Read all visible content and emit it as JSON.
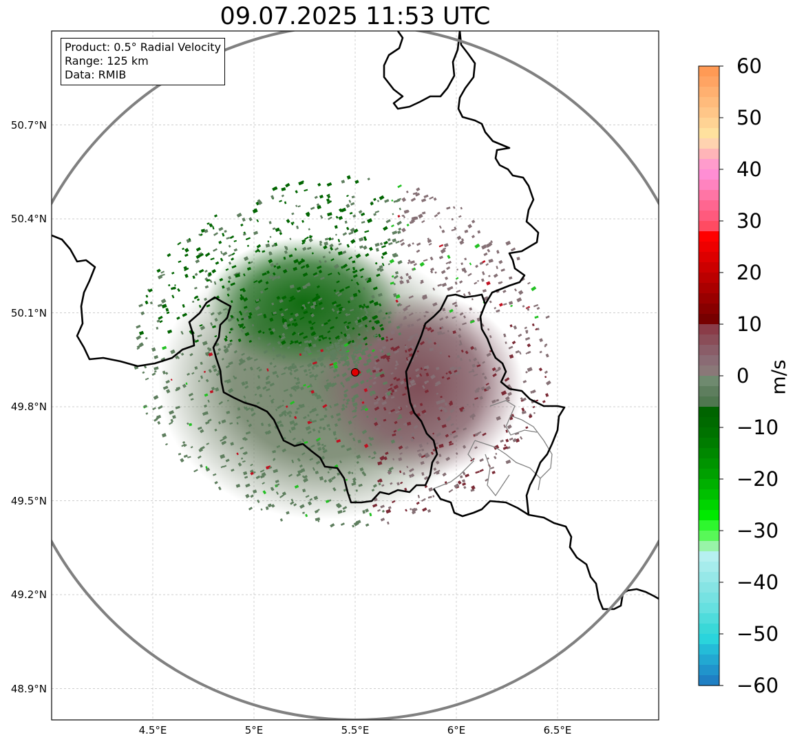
{
  "title": "09.07.2025 11:53 UTC",
  "info": {
    "product": "Product: 0.5° Radial Velocity",
    "range": "Range: 125 km",
    "source": "Data: RMIB"
  },
  "map": {
    "lon_range": [
      4.0,
      7.0
    ],
    "lat_range": [
      48.8,
      51.0
    ],
    "radar_site": {
      "lon": 5.5,
      "lat": 49.91
    },
    "range_ring_km": 125,
    "x_ticks": [
      "4.5°E",
      "5°E",
      "5.5°E",
      "6°E",
      "6.5°E"
    ],
    "x_tick_values": [
      4.5,
      5.0,
      5.5,
      6.0,
      6.5
    ],
    "y_ticks": [
      "50.7°N",
      "50.4°N",
      "50.1°N",
      "49.8°N",
      "49.5°N",
      "49.2°N",
      "48.9°N"
    ],
    "y_tick_values": [
      50.7,
      50.4,
      50.1,
      49.8,
      49.5,
      49.2,
      48.9
    ],
    "grid": true,
    "colors": {
      "ring": "#808080",
      "border": "#000000",
      "admin_border": "#808080",
      "radar_marker": "#e00000",
      "inbound_strong": "#006400",
      "inbound_weak": "#5e7e5e",
      "outbound_weak": "#857075",
      "outbound_strong": "#7a2a35"
    }
  },
  "colorbar": {
    "label": "m/s",
    "min": -60,
    "max": 60,
    "ticks": [
      "60",
      "50",
      "40",
      "30",
      "20",
      "10",
      "0",
      "−10",
      "−20",
      "−30",
      "−40",
      "−50",
      "−60"
    ],
    "tick_values": [
      60,
      50,
      40,
      30,
      20,
      10,
      0,
      -10,
      -20,
      -30,
      -40,
      -50,
      -60
    ],
    "bands": [
      {
        "from": 58,
        "to": 60,
        "color": "#ff9a55"
      },
      {
        "from": 56,
        "to": 58,
        "color": "#ffa463"
      },
      {
        "from": 54,
        "to": 56,
        "color": "#ffb070"
      },
      {
        "from": 52,
        "to": 54,
        "color": "#ffbb7c"
      },
      {
        "from": 50,
        "to": 52,
        "color": "#ffc688"
      },
      {
        "from": 48,
        "to": 50,
        "color": "#ffd394"
      },
      {
        "from": 46,
        "to": 48,
        "color": "#ffe19e"
      },
      {
        "from": 44,
        "to": 46,
        "color": "#ffd3b0"
      },
      {
        "from": 42,
        "to": 44,
        "color": "#ffb5b8"
      },
      {
        "from": 40,
        "to": 42,
        "color": "#ff9ccc"
      },
      {
        "from": 38,
        "to": 40,
        "color": "#ff8ed4"
      },
      {
        "from": 36,
        "to": 38,
        "color": "#ff83bf"
      },
      {
        "from": 34,
        "to": 36,
        "color": "#ff75a5"
      },
      {
        "from": 32,
        "to": 34,
        "color": "#ff6690"
      },
      {
        "from": 30,
        "to": 32,
        "color": "#ff5a7d"
      },
      {
        "from": 28,
        "to": 30,
        "color": "#ff4b62"
      },
      {
        "from": 26,
        "to": 28,
        "color": "#ff0000"
      },
      {
        "from": 24,
        "to": 26,
        "color": "#ee0000"
      },
      {
        "from": 22,
        "to": 24,
        "color": "#dd0000"
      },
      {
        "from": 20,
        "to": 22,
        "color": "#cc0000"
      },
      {
        "from": 18,
        "to": 20,
        "color": "#bb0000"
      },
      {
        "from": 16,
        "to": 18,
        "color": "#aa0000"
      },
      {
        "from": 14,
        "to": 16,
        "color": "#990000"
      },
      {
        "from": 12,
        "to": 14,
        "color": "#880000"
      },
      {
        "from": 10,
        "to": 12,
        "color": "#770000"
      },
      {
        "from": 8,
        "to": 10,
        "color": "#8a3c48"
      },
      {
        "from": 6,
        "to": 8,
        "color": "#8a4d58"
      },
      {
        "from": 4,
        "to": 6,
        "color": "#8a5d68"
      },
      {
        "from": 2,
        "to": 4,
        "color": "#8a6b74"
      },
      {
        "from": 0,
        "to": 2,
        "color": "#8a7878"
      },
      {
        "from": -2,
        "to": 0,
        "color": "#6f8a6f"
      },
      {
        "from": -4,
        "to": -2,
        "color": "#5e7e5e"
      },
      {
        "from": -6,
        "to": -4,
        "color": "#4f774f"
      },
      {
        "from": -8,
        "to": -6,
        "color": "#006400"
      },
      {
        "from": -10,
        "to": -8,
        "color": "#006a00"
      },
      {
        "from": -12,
        "to": -10,
        "color": "#007200"
      },
      {
        "from": -14,
        "to": -12,
        "color": "#007c00"
      },
      {
        "from": -16,
        "to": -14,
        "color": "#008800"
      },
      {
        "from": -18,
        "to": -16,
        "color": "#009400"
      },
      {
        "from": -20,
        "to": -18,
        "color": "#00a000"
      },
      {
        "from": -22,
        "to": -20,
        "color": "#00b000"
      },
      {
        "from": -24,
        "to": -22,
        "color": "#00c000"
      },
      {
        "from": -26,
        "to": -24,
        "color": "#00d400"
      },
      {
        "from": -28,
        "to": -26,
        "color": "#00ea00"
      },
      {
        "from": -30,
        "to": -28,
        "color": "#2ef72e"
      },
      {
        "from": -32,
        "to": -30,
        "color": "#58f858"
      },
      {
        "from": -34,
        "to": -32,
        "color": "#98f4a8"
      },
      {
        "from": -36,
        "to": -34,
        "color": "#b6f0f0"
      },
      {
        "from": -38,
        "to": -36,
        "color": "#a6ecec"
      },
      {
        "from": -40,
        "to": -38,
        "color": "#96e8e8"
      },
      {
        "from": -42,
        "to": -40,
        "color": "#86e4e4"
      },
      {
        "from": -44,
        "to": -42,
        "color": "#76e2e2"
      },
      {
        "from": -46,
        "to": -44,
        "color": "#66e0e0"
      },
      {
        "from": -48,
        "to": -46,
        "color": "#4fdcdc"
      },
      {
        "from": -50,
        "to": -48,
        "color": "#3ad8d8"
      },
      {
        "from": -52,
        "to": -50,
        "color": "#2ad4dc"
      },
      {
        "from": -54,
        "to": -52,
        "color": "#24bcd8"
      },
      {
        "from": -56,
        "to": -54,
        "color": "#22a8d2"
      },
      {
        "from": -58,
        "to": -56,
        "color": "#2094cc"
      },
      {
        "from": -60,
        "to": -58,
        "color": "#1f80c4"
      }
    ]
  }
}
